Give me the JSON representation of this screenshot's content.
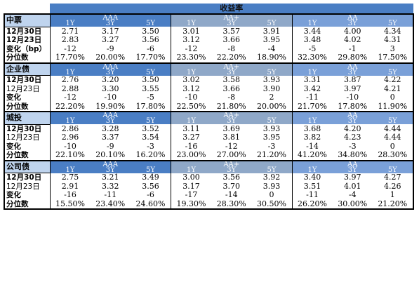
{
  "title": "收益率",
  "sections": [
    {
      "name": "中票",
      "groups": [
        "AAA",
        "AA+",
        "AA"
      ],
      "tenors": [
        "1Y",
        "3Y",
        "5Y"
      ],
      "rows": [
        {
          "label": "12月30日",
          "bold": true,
          "values": [
            "2.71",
            "3.17",
            "3.50",
            "3.01",
            "3.57",
            "3.91",
            "3.44",
            "4.00",
            "4.34"
          ]
        },
        {
          "label": "12月23日",
          "bold": true,
          "values": [
            "2.83",
            "3.27",
            "3.56",
            "3.12",
            "3.66",
            "3.95",
            "3.48",
            "4.02",
            "4.31"
          ]
        },
        {
          "label": "变化（bp）",
          "bold": true,
          "values": [
            "-12",
            "-9",
            "-6",
            "-12",
            "-8",
            "-4",
            "-5",
            "-1",
            "3"
          ]
        },
        {
          "label": "分位数",
          "bold": true,
          "values": [
            "17.70%",
            "20.00%",
            "17.70%",
            "23.30%",
            "22.20%",
            "18.90%",
            "32.30%",
            "29.80%",
            "17.50%"
          ]
        }
      ]
    },
    {
      "name": "企业债",
      "groups": [
        "AAA",
        "AA+",
        "AA"
      ],
      "tenors": [
        "1Y",
        "3Y",
        "5Y"
      ],
      "rows": [
        {
          "label": "12月30日",
          "bold": true,
          "values": [
            "2.76",
            "3.20",
            "3.50",
            "3.02",
            "3.58",
            "3.93",
            "3.31",
            "3.87",
            "4.22"
          ]
        },
        {
          "label": "12月23日",
          "bold": false,
          "values": [
            "2.88",
            "3.30",
            "3.55",
            "3.12",
            "3.66",
            "3.90",
            "3.42",
            "3.97",
            "4.21"
          ]
        },
        {
          "label": "变化",
          "bold": true,
          "values": [
            "-12",
            "-10",
            "-5",
            "-10",
            "-8",
            "2",
            "-11",
            "-10",
            "0"
          ]
        },
        {
          "label": "分位数",
          "bold": true,
          "values": [
            "22.20%",
            "19.90%",
            "17.80%",
            "22.50%",
            "21.80%",
            "20.00%",
            "21.70%",
            "17.80%",
            "11.90%"
          ]
        }
      ]
    },
    {
      "name": "城投",
      "groups": [
        "AAA",
        "AA+",
        "AA"
      ],
      "tenors": [
        "1Y",
        "3Y",
        "5Y"
      ],
      "rows": [
        {
          "label": "12月30日",
          "bold": true,
          "values": [
            "2.86",
            "3.28",
            "3.52",
            "3.11",
            "3.69",
            "3.93",
            "3.68",
            "4.20",
            "4.44"
          ]
        },
        {
          "label": "12月23日",
          "bold": false,
          "values": [
            "2.96",
            "3.37",
            "3.54",
            "3.27",
            "3.81",
            "3.95",
            "3.82",
            "4.23",
            "4.44"
          ]
        },
        {
          "label": "变化",
          "bold": true,
          "values": [
            "-10",
            "-9",
            "-3",
            "-16",
            "-12",
            "-3",
            "-14",
            "-3",
            "0"
          ]
        },
        {
          "label": "分位数",
          "bold": true,
          "values": [
            "22.10%",
            "20.10%",
            "16.20%",
            "23.00%",
            "27.00%",
            "21.20%",
            "41.20%",
            "34.80%",
            "28.30%"
          ]
        }
      ]
    },
    {
      "name": "公司债",
      "groups": [
        "AAA",
        "AA+",
        "AA"
      ],
      "tenors": [
        "1Y",
        "3Y",
        "5Y"
      ],
      "rows": [
        {
          "label": "12月30日",
          "bold": true,
          "values": [
            "2.75",
            "3.21",
            "3.49",
            "3.00",
            "3.56",
            "3.92",
            "3.40",
            "3.97",
            "4.27"
          ]
        },
        {
          "label": "12月23日",
          "bold": false,
          "values": [
            "2.91",
            "3.32",
            "3.56",
            "3.17",
            "3.70",
            "3.93",
            "3.51",
            "4.01",
            "4.26"
          ]
        },
        {
          "label": "变化",
          "bold": true,
          "values": [
            "-16",
            "-11",
            "-6",
            "-17",
            "-14",
            "0",
            "-11",
            "-4",
            "1"
          ]
        },
        {
          "label": "分位数",
          "bold": true,
          "values": [
            "15.50%",
            "23.40%",
            "24.60%",
            "19.30%",
            "28.30%",
            "30.50%",
            "26.20%",
            "30.00%",
            "21.20%"
          ]
        }
      ]
    }
  ]
}
